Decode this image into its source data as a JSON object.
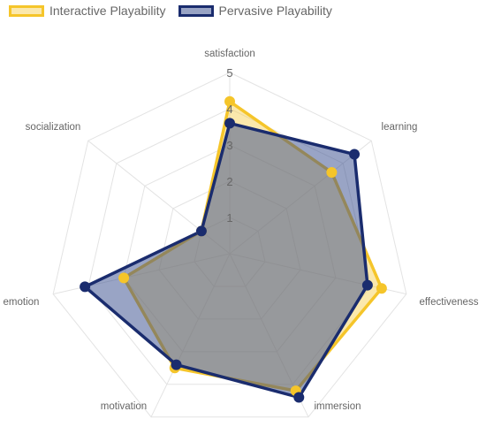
{
  "chart_data": {
    "type": "radar",
    "axes": [
      "satisfaction",
      "learning",
      "effectiveness",
      "immersion",
      "motivation",
      "emotion",
      "socialization"
    ],
    "r_range": [
      0,
      5
    ],
    "ticks": [
      "1",
      "2",
      "3",
      "4",
      "5"
    ],
    "grid": true,
    "legend_position": "top-left",
    "series": [
      {
        "name": "Interactive Playability",
        "values": [
          4.2,
          3.6,
          4.3,
          4.2,
          3.5,
          3.0,
          1.0
        ],
        "stroke": "#f5c52a",
        "fill": "rgba(247,204,72,0.45)"
      },
      {
        "name": "Pervasive Playability",
        "values": [
          3.6,
          4.4,
          3.9,
          4.4,
          3.4,
          4.1,
          1.0
        ],
        "stroke": "#1a2c6e",
        "fill": "rgba(52,73,140,0.5)"
      }
    ]
  }
}
